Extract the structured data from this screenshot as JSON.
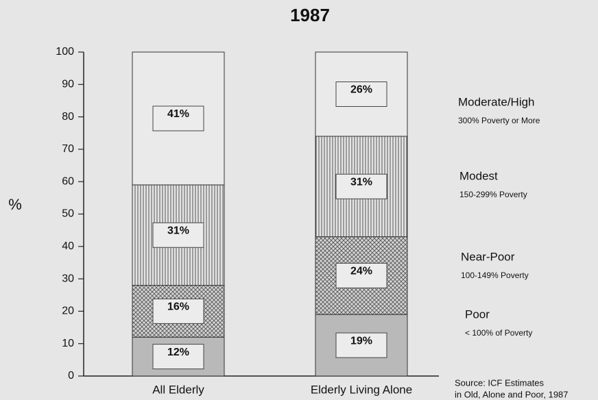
{
  "chart_data": {
    "type": "stacked_bar",
    "title": "1987",
    "y_label": "%",
    "categories": [
      "All Elderly",
      "Elderly Living Alone"
    ],
    "series": [
      {
        "name": "Poor",
        "description": "< 100% of Poverty",
        "color": "#b9b9b9",
        "pattern": "solid",
        "values": [
          12,
          19
        ],
        "value_labels": [
          "12%",
          "19%"
        ]
      },
      {
        "name": "Near-Poor",
        "description": "100-149% Poverty",
        "color": "#c4c4c4",
        "pattern": "crosshatch",
        "values": [
          16,
          24
        ],
        "value_labels": [
          "16%",
          "24%"
        ]
      },
      {
        "name": "Modest",
        "description": "150-299% Poverty",
        "color": "#d0d0d0",
        "pattern": "vertical",
        "values": [
          31,
          31
        ],
        "value_labels": [
          "31%",
          "31%"
        ]
      },
      {
        "name": "Moderate/High",
        "description": "300% Poverty or More",
        "color": "#eaeaea",
        "pattern": "solid",
        "values": [
          41,
          26
        ],
        "value_labels": [
          "41%",
          "26%"
        ]
      }
    ],
    "ylim": [
      0,
      100
    ],
    "yticks": [
      0,
      10,
      20,
      30,
      40,
      50,
      60,
      70,
      80,
      90,
      100
    ],
    "source": [
      "Source: ICF Estimates",
      "in Old, Alone and Poor, 1987"
    ]
  }
}
